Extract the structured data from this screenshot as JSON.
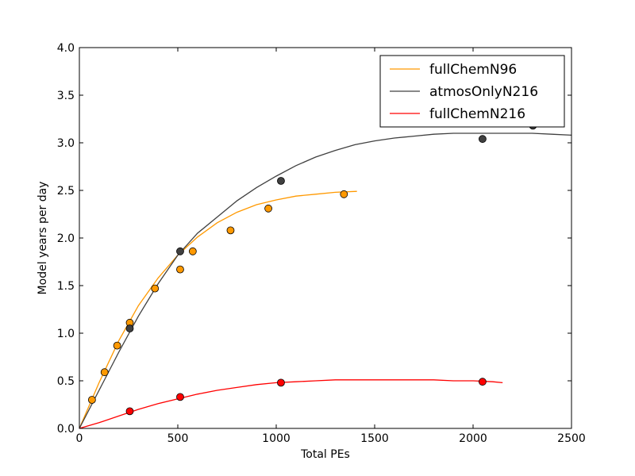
{
  "chart_data": {
    "type": "scatter",
    "title": "",
    "xlabel": "Total PEs",
    "ylabel": "Model years per day",
    "xlim": [
      0,
      2500
    ],
    "ylim": [
      0.0,
      4.0
    ],
    "xticks": [
      0,
      500,
      1000,
      1500,
      2000,
      2500
    ],
    "xtick_labels": [
      "0",
      "500",
      "1000",
      "1500",
      "2000",
      "2500"
    ],
    "yticks": [
      0.0,
      0.5,
      1.0,
      1.5,
      2.0,
      2.5,
      3.0,
      3.5,
      4.0
    ],
    "ytick_labels": [
      "0.0",
      "0.5",
      "1.0",
      "1.5",
      "2.0",
      "2.5",
      "3.0",
      "3.5",
      "4.0"
    ],
    "grid": false,
    "legend_position": "top-right",
    "series": [
      {
        "name": "fullChemN96",
        "color": "#ff9900",
        "points": [
          {
            "x": 64,
            "y": 0.3
          },
          {
            "x": 128,
            "y": 0.59
          },
          {
            "x": 192,
            "y": 0.87
          },
          {
            "x": 256,
            "y": 1.11
          },
          {
            "x": 384,
            "y": 1.47
          },
          {
            "x": 512,
            "y": 1.67
          },
          {
            "x": 576,
            "y": 1.86
          },
          {
            "x": 768,
            "y": 2.08
          },
          {
            "x": 960,
            "y": 2.31
          },
          {
            "x": 1344,
            "y": 2.46
          }
        ],
        "fit": {
          "x_range": [
            0,
            1410
          ],
          "points": [
            [
              0,
              0.0
            ],
            [
              100,
              0.48
            ],
            [
              200,
              0.92
            ],
            [
              300,
              1.29
            ],
            [
              400,
              1.58
            ],
            [
              500,
              1.82
            ],
            [
              600,
              2.01
            ],
            [
              700,
              2.16
            ],
            [
              800,
              2.27
            ],
            [
              900,
              2.35
            ],
            [
              1000,
              2.4
            ],
            [
              1100,
              2.44
            ],
            [
              1200,
              2.46
            ],
            [
              1300,
              2.48
            ],
            [
              1410,
              2.49
            ]
          ]
        }
      },
      {
        "name": "atmosOnlyN216",
        "color": "#404040",
        "points": [
          {
            "x": 256,
            "y": 1.05
          },
          {
            "x": 512,
            "y": 1.86
          },
          {
            "x": 1024,
            "y": 2.6
          },
          {
            "x": 2048,
            "y": 3.04
          },
          {
            "x": 2304,
            "y": 3.18
          }
        ],
        "fit": {
          "x_range": [
            0,
            2500
          ],
          "points": [
            [
              0,
              0.0
            ],
            [
              100,
              0.4
            ],
            [
              200,
              0.8
            ],
            [
              300,
              1.18
            ],
            [
              400,
              1.52
            ],
            [
              500,
              1.82
            ],
            [
              600,
              2.05
            ],
            [
              700,
              2.22
            ],
            [
              800,
              2.39
            ],
            [
              900,
              2.53
            ],
            [
              1000,
              2.65
            ],
            [
              1100,
              2.76
            ],
            [
              1200,
              2.85
            ],
            [
              1300,
              2.92
            ],
            [
              1400,
              2.98
            ],
            [
              1500,
              3.02
            ],
            [
              1600,
              3.05
            ],
            [
              1700,
              3.07
            ],
            [
              1800,
              3.09
            ],
            [
              1900,
              3.1
            ],
            [
              2000,
              3.1
            ],
            [
              2100,
              3.1
            ],
            [
              2200,
              3.1
            ],
            [
              2300,
              3.1
            ],
            [
              2400,
              3.09
            ],
            [
              2500,
              3.08
            ]
          ]
        }
      },
      {
        "name": "fullChemN216",
        "color": "#ff0000",
        "points": [
          {
            "x": 256,
            "y": 0.18
          },
          {
            "x": 512,
            "y": 0.33
          },
          {
            "x": 1024,
            "y": 0.48
          },
          {
            "x": 2048,
            "y": 0.49
          }
        ],
        "fit": {
          "x_range": [
            0,
            2150
          ],
          "points": [
            [
              0,
              0.0
            ],
            [
              100,
              0.06
            ],
            [
              200,
              0.13
            ],
            [
              300,
              0.2
            ],
            [
              400,
              0.26
            ],
            [
              500,
              0.31
            ],
            [
              600,
              0.36
            ],
            [
              700,
              0.4
            ],
            [
              800,
              0.43
            ],
            [
              900,
              0.46
            ],
            [
              1000,
              0.48
            ],
            [
              1100,
              0.49
            ],
            [
              1200,
              0.5
            ],
            [
              1300,
              0.51
            ],
            [
              1400,
              0.51
            ],
            [
              1500,
              0.51
            ],
            [
              1600,
              0.51
            ],
            [
              1700,
              0.51
            ],
            [
              1800,
              0.51
            ],
            [
              1900,
              0.5
            ],
            [
              2000,
              0.5
            ],
            [
              2100,
              0.49
            ],
            [
              2150,
              0.48
            ]
          ]
        }
      }
    ]
  }
}
